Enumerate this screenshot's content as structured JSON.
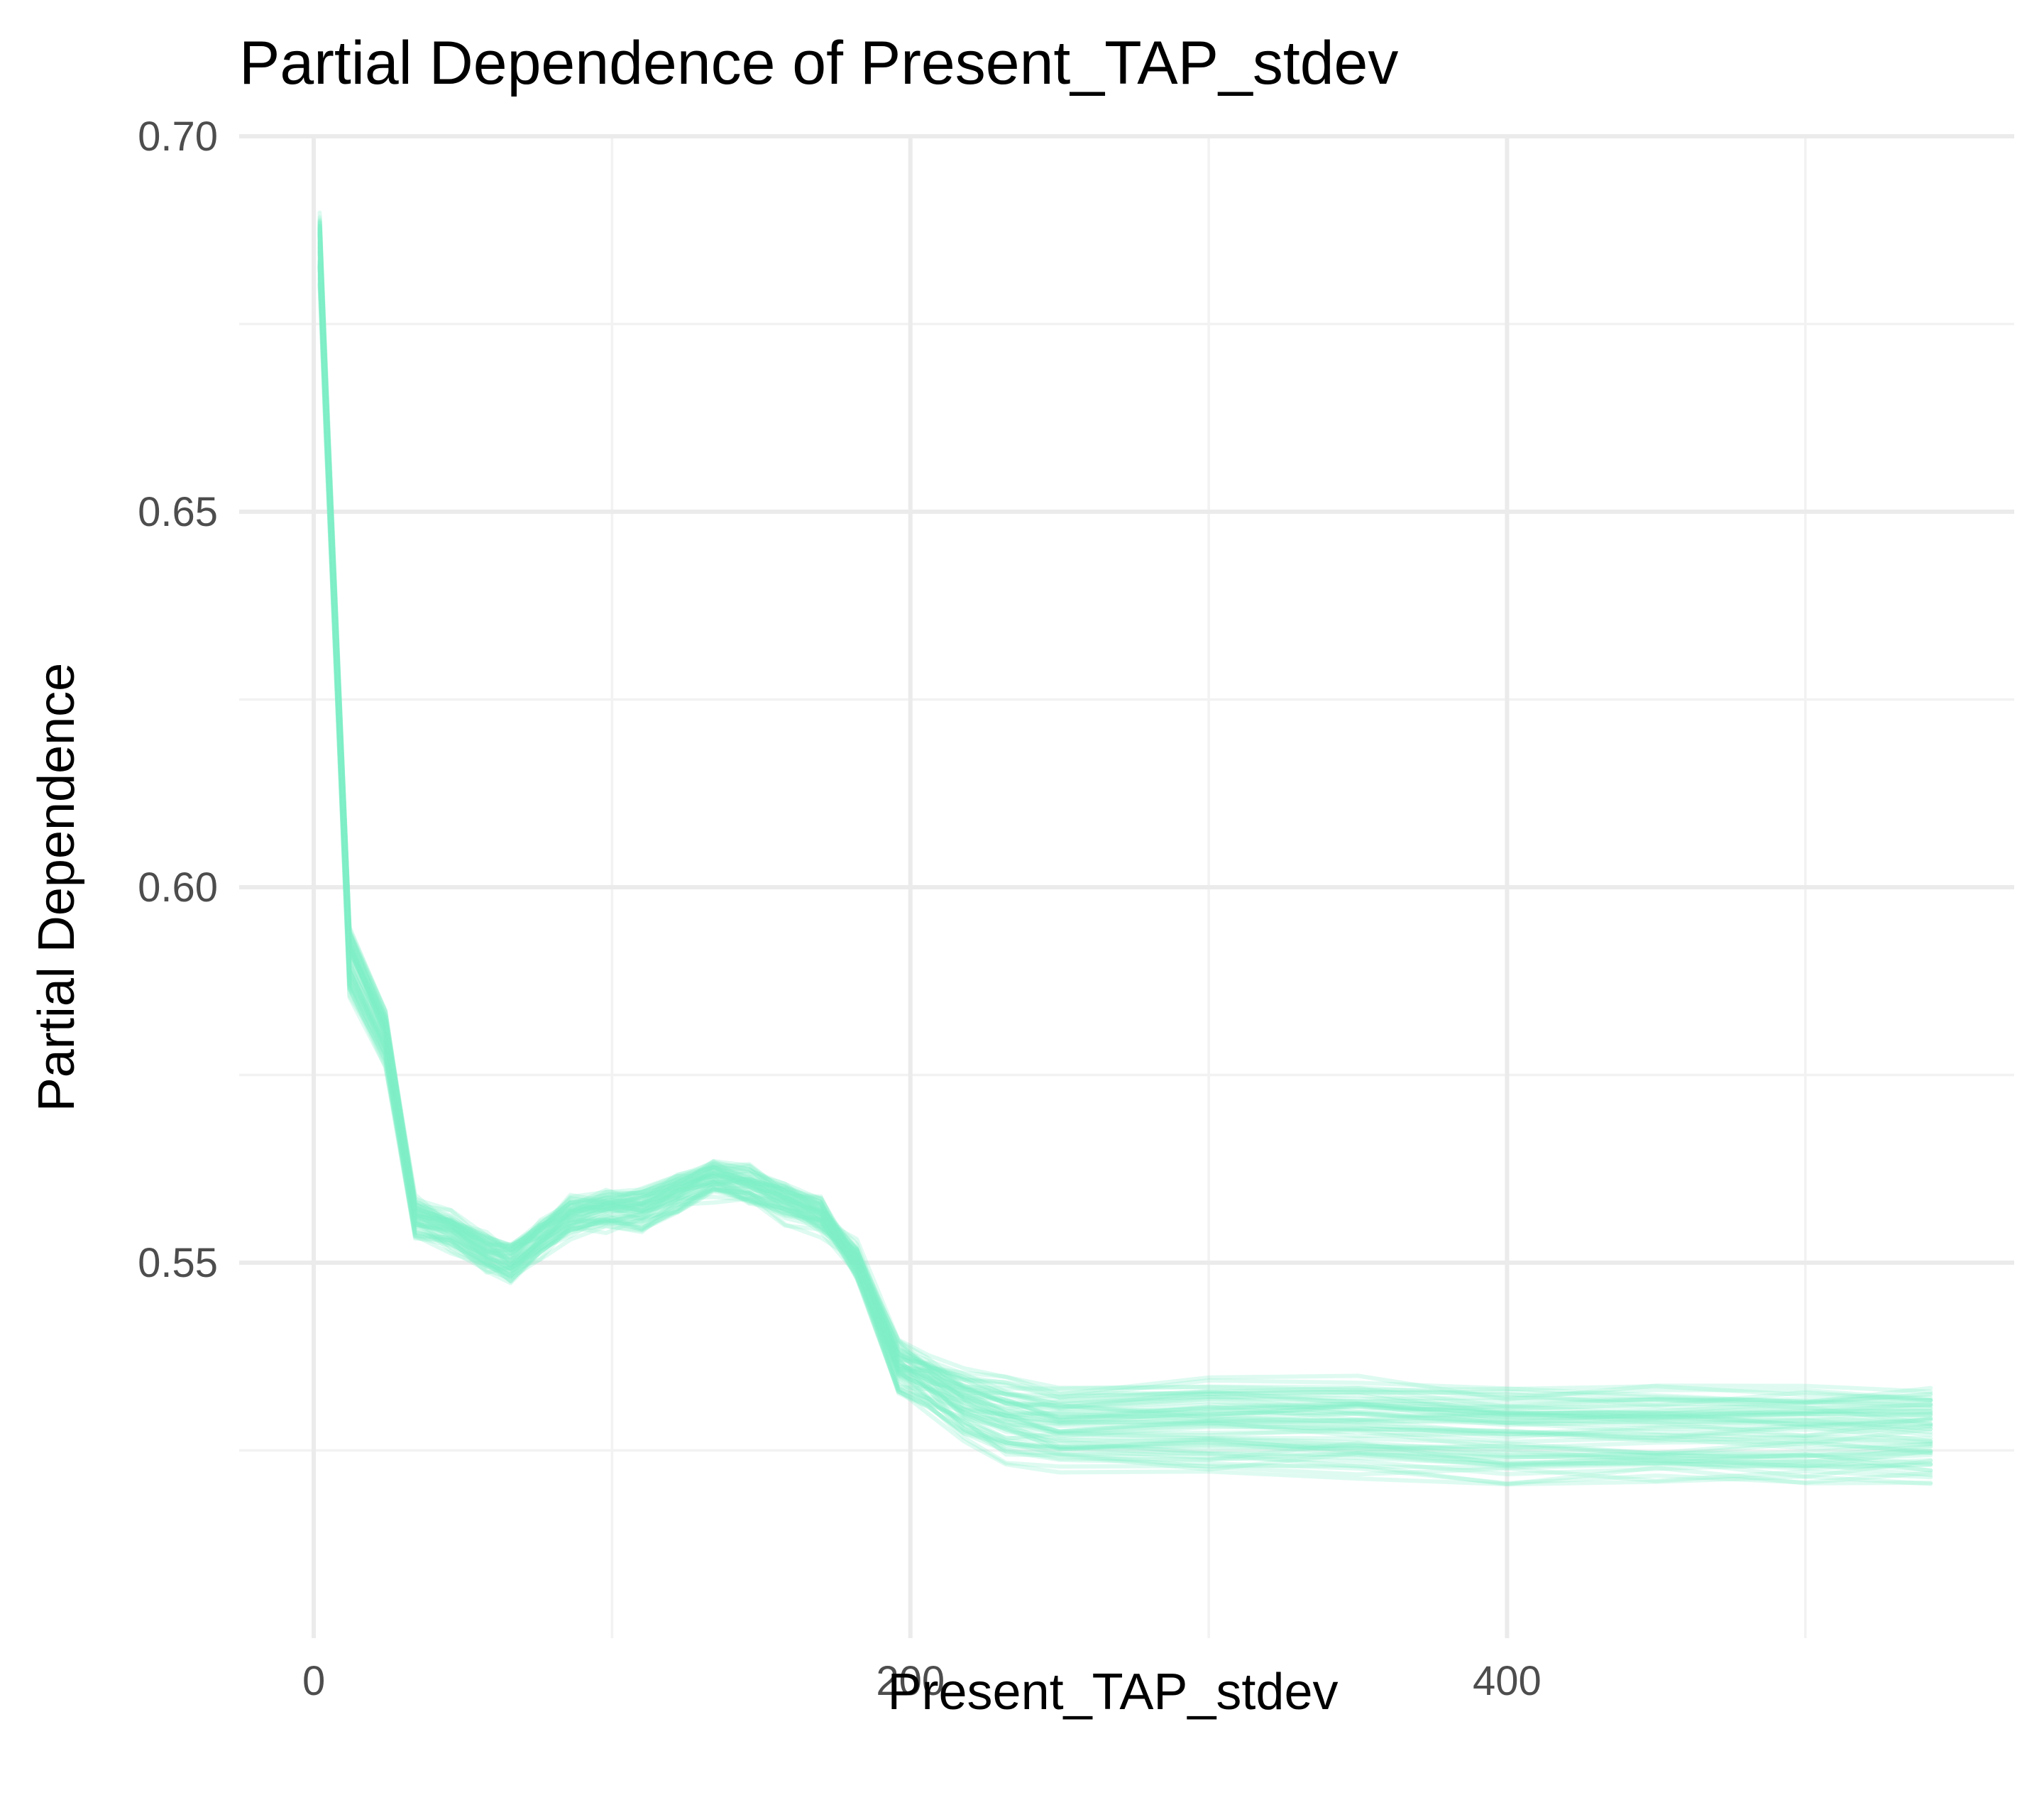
{
  "chart_data": {
    "type": "line",
    "title": "Partial Dependence of Present_TAP_stdev",
    "xlabel": "Present_TAP_stdev",
    "ylabel": "Partial Dependence",
    "xlim": [
      -25,
      570
    ],
    "ylim": [
      0.5,
      0.7
    ],
    "x_ticks": [
      0,
      200,
      400
    ],
    "x_tick_labels": [
      "0",
      "200",
      "400"
    ],
    "x_minor_ticks": [
      100,
      300,
      500
    ],
    "y_ticks": [
      0.55,
      0.6,
      0.65,
      0.7
    ],
    "y_tick_labels": [
      "0.55",
      "0.60",
      "0.65",
      "0.70"
    ],
    "y_minor_ticks": [
      0.525,
      0.575,
      0.625,
      0.675
    ],
    "grid": true,
    "legend": "none",
    "series_color": "#7ff0c8",
    "series_opacity": 0.25,
    "ice_curve_count": 60,
    "x": [
      2,
      4,
      12,
      24,
      34,
      46,
      58,
      66,
      76,
      86,
      98,
      110,
      122,
      134,
      146,
      158,
      170,
      182,
      196,
      206,
      218,
      232,
      250,
      300,
      350,
      400,
      450,
      500,
      542
    ],
    "center_curve": [
      0.685,
      0.665,
      0.59,
      0.58,
      0.556,
      0.554,
      0.551,
      0.55,
      0.553,
      0.556,
      0.557,
      0.557,
      0.559,
      0.561,
      0.56,
      0.558,
      0.556,
      0.55,
      0.536,
      0.534,
      0.531,
      0.529,
      0.528,
      0.528,
      0.528,
      0.527,
      0.527,
      0.527,
      0.527
    ],
    "spread": [
      0.004,
      0.004,
      0.004,
      0.003,
      0.002,
      0.002,
      0.002,
      0.002,
      0.002,
      0.002,
      0.002,
      0.002,
      0.002,
      0.002,
      0.002,
      0.002,
      0.002,
      0.002,
      0.003,
      0.003,
      0.004,
      0.005,
      0.005,
      0.006,
      0.006,
      0.006,
      0.006,
      0.006,
      0.006
    ]
  }
}
